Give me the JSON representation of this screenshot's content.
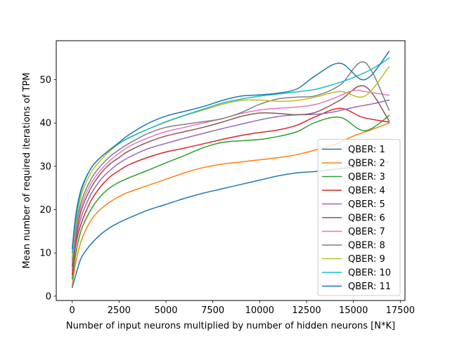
{
  "chart_data": {
    "type": "line",
    "title": "",
    "xlabel": "Number of input neurons multiplied by number of hidden neurons [N*K]",
    "ylabel": "Mean number of required iterations of TPM",
    "xlim": [
      -850,
      17750
    ],
    "ylim": [
      -1,
      59
    ],
    "xticks": [
      0,
      2500,
      5000,
      7500,
      10000,
      12500,
      15000,
      17500
    ],
    "yticks": [
      0,
      10,
      20,
      30,
      40,
      50
    ],
    "grid": false,
    "legend_position": "lower-right",
    "series": [
      {
        "name": "QBER: 1",
        "color": "#1f77b4",
        "x": [
          0,
          200,
          500,
          1000,
          1500,
          2000,
          2500,
          3000,
          4000,
          5000,
          6000,
          7000,
          8000,
          9000,
          10000,
          11000,
          12000,
          13000,
          14000,
          15000,
          16000,
          16900
        ],
        "y": [
          2,
          5,
          9,
          12,
          14.2,
          15.8,
          17,
          18,
          19.8,
          21.2,
          22.6,
          23.8,
          24.8,
          25.8,
          26.8,
          27.8,
          28.5,
          28.8,
          29.3,
          29.8,
          30.5,
          31
        ]
      },
      {
        "name": "QBER: 2",
        "color": "#ff7f0e",
        "x": [
          0,
          200,
          500,
          1000,
          1500,
          2000,
          2500,
          3000,
          4000,
          5000,
          6000,
          7000,
          8000,
          9000,
          10000,
          11000,
          12000,
          13000,
          14000,
          15000,
          16000,
          16900
        ],
        "y": [
          2.5,
          8,
          13,
          17.5,
          20,
          21.7,
          23,
          24,
          25.5,
          27,
          28.5,
          29.7,
          30.5,
          31,
          31.5,
          32,
          32.7,
          33.8,
          35,
          37,
          38.5,
          40
        ]
      },
      {
        "name": "QBER: 3",
        "color": "#2ca02c",
        "x": [
          0,
          200,
          500,
          1000,
          1500,
          2000,
          2500,
          3000,
          4000,
          5000,
          6000,
          7000,
          8000,
          9000,
          10000,
          11000,
          12000,
          13000,
          14300,
          15600,
          16900
        ],
        "y": [
          4,
          10,
          15.5,
          20,
          23,
          25,
          26.3,
          27.3,
          29,
          30.8,
          32.5,
          34.3,
          35.5,
          35.9,
          36.2,
          36.9,
          38,
          40.2,
          41.3,
          38.2,
          41.7
        ]
      },
      {
        "name": "QBER: 4",
        "color": "#d62728",
        "x": [
          0,
          200,
          500,
          1000,
          1500,
          2000,
          2500,
          3000,
          4000,
          5000,
          6000,
          7000,
          8000,
          9000,
          10000,
          11000,
          12000,
          13000,
          14300,
          15500,
          16900
        ],
        "y": [
          5,
          12,
          17,
          22,
          25.2,
          27.5,
          29,
          30.3,
          32,
          33.3,
          34.2,
          35.2,
          36.2,
          37.1,
          37.8,
          38.4,
          39.5,
          41.5,
          43.4,
          41.3,
          40.2
        ]
      },
      {
        "name": "QBER: 5",
        "color": "#9467bd",
        "x": [
          0,
          200,
          500,
          1000,
          1500,
          2000,
          2500,
          3000,
          4000,
          5000,
          6000,
          7000,
          8000,
          9000,
          10000,
          11000,
          12000,
          13000,
          14000,
          15000,
          16000,
          16900
        ],
        "y": [
          6,
          13,
          18.5,
          23.5,
          26.8,
          29,
          30.7,
          32,
          34,
          35.3,
          36.5,
          37.6,
          38.7,
          39.7,
          40.7,
          41.5,
          41.9,
          42,
          42.6,
          43.6,
          44.4,
          45.3
        ]
      },
      {
        "name": "QBER: 6",
        "color": "#8c564b",
        "x": [
          0,
          200,
          500,
          1000,
          1500,
          2000,
          2500,
          3000,
          4000,
          5000,
          6000,
          7000,
          8000,
          9000,
          10000,
          11000,
          12000,
          13000,
          14300,
          15600,
          16900
        ],
        "y": [
          7,
          14,
          20,
          25,
          28.2,
          30.5,
          32,
          33.5,
          35.5,
          37,
          38,
          39,
          40.2,
          41.5,
          42.3,
          42.2,
          41.9,
          42.5,
          45.3,
          48.5,
          40.5
        ]
      },
      {
        "name": "QBER: 7",
        "color": "#e377c2",
        "x": [
          0,
          200,
          500,
          1000,
          1500,
          2000,
          2500,
          3000,
          4000,
          5000,
          6000,
          7000,
          8000,
          9000,
          10000,
          11000,
          12000,
          13000,
          14000,
          15000,
          15700,
          16900
        ],
        "y": [
          8,
          15,
          21,
          26,
          29,
          31.3,
          33,
          34.5,
          36.5,
          38,
          39,
          40,
          41,
          42.2,
          43,
          43.4,
          43.7,
          44.3,
          45.8,
          47.5,
          47.2,
          46.4
        ]
      },
      {
        "name": "QBER: 8",
        "color": "#7f7f7f",
        "x": [
          0,
          200,
          500,
          1000,
          1500,
          2000,
          2500,
          3000,
          4000,
          5000,
          6000,
          7000,
          8000,
          9000,
          10000,
          11000,
          12000,
          13000,
          14300,
          15600,
          16900
        ],
        "y": [
          8.5,
          16,
          22,
          27,
          30,
          32.2,
          33.8,
          35.2,
          37.5,
          39,
          39.7,
          40.3,
          41,
          42.4,
          44.3,
          45.6,
          46,
          46.3,
          48.8,
          54,
          43
        ]
      },
      {
        "name": "QBER: 9",
        "color": "#bcbd22",
        "x": [
          0,
          200,
          500,
          1000,
          1500,
          2000,
          2500,
          3000,
          4000,
          5000,
          6000,
          7000,
          8000,
          9000,
          10000,
          11000,
          12000,
          13000,
          14300,
          15600,
          16900
        ],
        "y": [
          9,
          17,
          23.5,
          28.5,
          31.3,
          33.5,
          35.2,
          36.6,
          38.5,
          40.2,
          41.7,
          43,
          44.3,
          45.2,
          45.3,
          45,
          45.2,
          46,
          47.3,
          46.2,
          53
        ]
      },
      {
        "name": "QBER: 10",
        "color": "#17becf",
        "x": [
          0,
          200,
          500,
          1000,
          1500,
          2000,
          2500,
          3000,
          4000,
          5000,
          6000,
          7000,
          8000,
          9000,
          10000,
          11000,
          12000,
          13000,
          14000,
          15000,
          16000,
          16900
        ],
        "y": [
          10,
          18,
          24.5,
          29.5,
          32,
          33.8,
          35.3,
          36.5,
          38.5,
          40.3,
          41.8,
          43.2,
          44.6,
          45.5,
          46.2,
          46.7,
          47.2,
          47.8,
          49,
          50.5,
          52.5,
          55
        ]
      },
      {
        "name": "QBER: 11",
        "color": "#1f77b4",
        "x": [
          0,
          200,
          500,
          1000,
          1500,
          2000,
          2500,
          3000,
          4000,
          5000,
          6000,
          7000,
          8000,
          9000,
          10000,
          11000,
          12000,
          13000,
          14300,
          15600,
          16900
        ],
        "y": [
          11,
          19,
          25,
          29.5,
          32,
          33.8,
          35.5,
          37.2,
          39.8,
          41.6,
          42.7,
          43.8,
          45.2,
          46.2,
          46.5,
          46.9,
          47.9,
          51,
          53.8,
          50,
          56.5
        ]
      }
    ]
  }
}
